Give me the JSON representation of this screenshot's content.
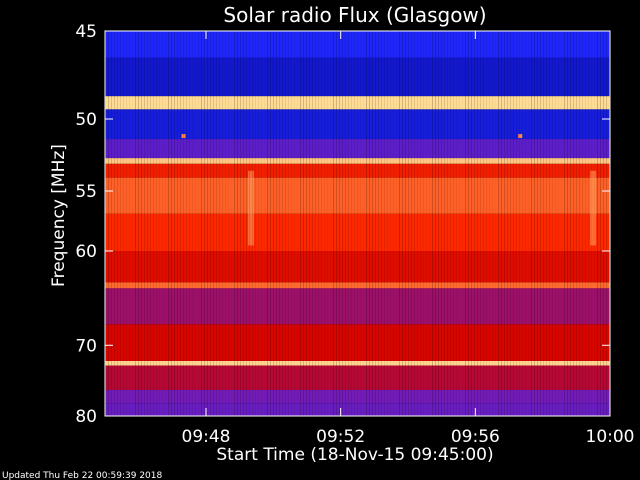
{
  "chart_data": {
    "type": "heatmap",
    "title": "Solar radio Flux (Glasgow)",
    "xlabel": "Start Time (18-Nov-15 09:45:00)",
    "ylabel": "Frequency [MHz]",
    "y_ticks": [
      "45",
      "50",
      "55",
      "60",
      "70",
      "80"
    ],
    "x_ticks": [
      "09:48",
      "09:52",
      "09:56",
      "10:00"
    ],
    "y_scale": "reciprocal",
    "ylim": [
      45,
      80
    ],
    "xlim": [
      "09:45:00",
      "10:00:00"
    ],
    "grid": false,
    "colormap": [
      "#000080",
      "#1f28ff",
      "#7a1ab0",
      "#d00000",
      "#ff2a00",
      "#ff7a3a",
      "#ffe8a0"
    ],
    "bands": [
      {
        "freq_start": 45.0,
        "freq_end": 46.4,
        "level": 0.16
      },
      {
        "freq_start": 46.4,
        "freq_end": 48.6,
        "level": 0.1
      },
      {
        "freq_start": 48.6,
        "freq_end": 49.4,
        "level": 0.98
      },
      {
        "freq_start": 49.4,
        "freq_end": 51.3,
        "level": 0.12
      },
      {
        "freq_start": 51.3,
        "freq_end": 52.6,
        "level": 0.28
      },
      {
        "freq_start": 52.6,
        "freq_end": 53.0,
        "level": 0.95
      },
      {
        "freq_start": 53.0,
        "freq_end": 54.0,
        "level": 0.62
      },
      {
        "freq_start": 54.0,
        "freq_end": 56.8,
        "level": 0.78
      },
      {
        "freq_start": 56.8,
        "freq_end": 60.0,
        "level": 0.66
      },
      {
        "freq_start": 60.0,
        "freq_end": 63.0,
        "level": 0.55
      },
      {
        "freq_start": 63.0,
        "freq_end": 63.6,
        "level": 0.8
      },
      {
        "freq_start": 63.6,
        "freq_end": 67.5,
        "level": 0.4
      },
      {
        "freq_start": 67.5,
        "freq_end": 72.0,
        "level": 0.52
      },
      {
        "freq_start": 72.0,
        "freq_end": 72.6,
        "level": 0.97
      },
      {
        "freq_start": 72.6,
        "freq_end": 76.0,
        "level": 0.45
      },
      {
        "freq_start": 76.0,
        "freq_end": 78.0,
        "level": 0.32
      },
      {
        "freq_start": 78.0,
        "freq_end": 80.0,
        "level": 0.3
      }
    ],
    "features": [
      {
        "time": "09:49:20",
        "freq_start": 53.5,
        "freq_end": 59.5,
        "level": 0.9
      },
      {
        "time": "09:59:30",
        "freq_start": 53.5,
        "freq_end": 59.5,
        "level": 0.9
      },
      {
        "time": "09:47:20",
        "freq": 51.1,
        "level": 0.85
      },
      {
        "time": "09:57:20",
        "freq": 51.1,
        "level": 0.85
      }
    ]
  },
  "footer": {
    "updated": "Updated Thu Feb 22 00:59:39 2018"
  }
}
